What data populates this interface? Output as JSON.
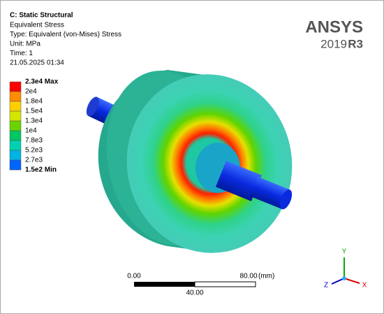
{
  "header": {
    "title": "C: Static Structural",
    "lines": [
      "Equivalent Stress",
      "Type: Equivalent (von-Mises) Stress",
      "Unit: MPa",
      "Time: 1",
      "21.05.2025 01:34"
    ]
  },
  "logo": {
    "brand": "ANSYS",
    "version": "2019",
    "release": "R3"
  },
  "legend": [
    {
      "label": "2.3e4 Max",
      "color": "#ff0000"
    },
    {
      "label": "2e4",
      "color": "#ff8c00"
    },
    {
      "label": "1.8e4",
      "color": "#ffd000"
    },
    {
      "label": "1.5e4",
      "color": "#d2e600"
    },
    {
      "label": "1.3e4",
      "color": "#6ad400"
    },
    {
      "label": "1e4",
      "color": "#00c864"
    },
    {
      "label": "7.8e3",
      "color": "#00d2b0"
    },
    {
      "label": "5.2e3",
      "color": "#00b4e6"
    },
    {
      "label": "2.7e3",
      "color": "#0064ff"
    },
    {
      "label": "1.5e2 Min",
      "color": "#0000ff"
    }
  ],
  "scale": {
    "start": "0.00",
    "end": "80.00",
    "unit": "(mm)",
    "mid": "40.00"
  },
  "triad": {
    "y": "Y",
    "z": "Z",
    "x": "X"
  }
}
